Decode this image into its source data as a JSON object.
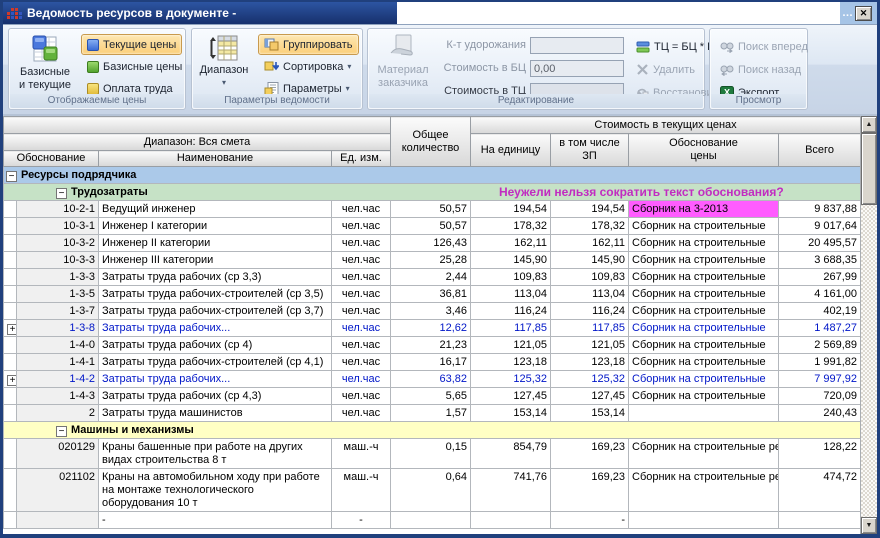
{
  "window": {
    "title": "Ведомость ресурсов в документе -",
    "overflow": "…",
    "close": "✕"
  },
  "icons": {
    "collapse": "−",
    "expand": "+",
    "chevron": "▾",
    "up": "▲",
    "down": "▼",
    "sort_arrow": "↓"
  },
  "colors": {
    "highlight_cell": "#ff5cff",
    "annotation": "#c12cc1",
    "group_blue": "#abc9e9",
    "group_green": "#c6e2c6",
    "group_yellow": "#ffffc4",
    "active_button": "#fbcf79",
    "titlebar": "#16306c"
  },
  "ribbon": {
    "display": {
      "label": "Отображаемые цены",
      "big": {
        "line1": "Базисные",
        "line2": "и текущие"
      },
      "buttons": [
        {
          "label": "Текущие цены"
        },
        {
          "label": "Базисные цены"
        },
        {
          "label": "Оплата труда"
        }
      ]
    },
    "params": {
      "label": "Параметры ведомости",
      "big": {
        "line1": "Диапазон"
      },
      "buttons": [
        {
          "label": "Группировать"
        },
        {
          "label": "Сортировка"
        },
        {
          "label": "Параметры"
        }
      ]
    },
    "edit": {
      "label": "Редактирование",
      "big": {
        "line1": "Материал",
        "line2": "заказчика"
      },
      "fields": [
        {
          "label": "К-т удорожания",
          "value": ""
        },
        {
          "label": "Стоимость в БЦ",
          "value": "0,00"
        },
        {
          "label": "Стоимость в ТЦ",
          "value": ""
        }
      ],
      "buttons": [
        {
          "label": "ТЦ = БЦ * К"
        },
        {
          "label": "Удалить"
        },
        {
          "label": "Восстановить"
        }
      ]
    },
    "view": {
      "label": "Просмотр",
      "buttons": [
        {
          "label": "Поиск вперед"
        },
        {
          "label": "Поиск назад"
        },
        {
          "label": "Экспорт"
        }
      ]
    }
  },
  "table": {
    "range": "Диапазон: Вся смета",
    "header": {
      "code": "Обоснование",
      "name": "Наименование",
      "unit": "Ед. изм.",
      "qty1": "Общее",
      "qty2": "количество",
      "group": "Стоимость в текущих ценах",
      "per": "На единицу",
      "sal1": "в том числе",
      "sal2": "ЗП",
      "basis1": "Обоснование",
      "basis2": "цены",
      "total": "Всего"
    },
    "rows": [
      {
        "kind": "g1",
        "label": "Ресурсы подрядчика"
      },
      {
        "kind": "g2",
        "label": "Трудозатраты",
        "annotation": "Неужели нельзя сократить текст обоснования?"
      },
      {
        "kind": "data",
        "code": "10-2-1",
        "name": "Ведущий инженер",
        "unit": "чел.час",
        "qty": "50,57",
        "per": "194,54",
        "sal": "194,54",
        "basis": "Сборник на 3-2013",
        "total": "9 837,88",
        "hl": true
      },
      {
        "kind": "data",
        "code": "10-3-1",
        "name": "Инженер I категории",
        "unit": "чел.час",
        "qty": "50,57",
        "per": "178,32",
        "sal": "178,32",
        "basis": "Сборник на строительные",
        "total": "9 017,64"
      },
      {
        "kind": "data",
        "code": "10-3-2",
        "name": "Инженер II категории",
        "unit": "чел.час",
        "qty": "126,43",
        "per": "162,11",
        "sal": "162,11",
        "basis": "Сборник на строительные",
        "total": "20 495,57"
      },
      {
        "kind": "data",
        "code": "10-3-3",
        "name": "Инженер III категории",
        "unit": "чел.час",
        "qty": "25,28",
        "per": "145,90",
        "sal": "145,90",
        "basis": "Сборник на строительные",
        "total": "3 688,35"
      },
      {
        "kind": "data",
        "code": "1-3-3",
        "name": "Затраты труда рабочих (ср 3,3)",
        "unit": "чел.час",
        "qty": "2,44",
        "per": "109,83",
        "sal": "109,83",
        "basis": "Сборник на строительные",
        "total": "267,99"
      },
      {
        "kind": "data",
        "code": "1-3-5",
        "name": "Затраты труда рабочих-строителей (ср 3,5)",
        "unit": "чел.час",
        "qty": "36,81",
        "per": "113,04",
        "sal": "113,04",
        "basis": "Сборник на строительные",
        "total": "4 161,00"
      },
      {
        "kind": "data",
        "code": "1-3-7",
        "name": "Затраты труда рабочих-строителей (ср 3,7)",
        "unit": "чел.час",
        "qty": "3,46",
        "per": "116,24",
        "sal": "116,24",
        "basis": "Сборник на строительные",
        "total": "402,19"
      },
      {
        "kind": "data",
        "code": "1-3-8",
        "name": "Затраты труда рабочих...",
        "unit": "чел.час",
        "qty": "12,62",
        "per": "117,85",
        "sal": "117,85",
        "basis": "Сборник на строительные",
        "total": "1 487,27",
        "blue": true,
        "expand": true
      },
      {
        "kind": "data",
        "code": "1-4-0",
        "name": "Затраты труда рабочих (ср 4)",
        "unit": "чел.час",
        "qty": "21,23",
        "per": "121,05",
        "sal": "121,05",
        "basis": "Сборник на строительные",
        "total": "2 569,89"
      },
      {
        "kind": "data",
        "code": "1-4-1",
        "name": "Затраты труда рабочих-строителей (ср 4,1)",
        "unit": "чел.час",
        "qty": "16,17",
        "per": "123,18",
        "sal": "123,18",
        "basis": "Сборник на строительные",
        "total": "1 991,82"
      },
      {
        "kind": "data",
        "code": "1-4-2",
        "name": "Затраты труда рабочих...",
        "unit": "чел.час",
        "qty": "63,82",
        "per": "125,32",
        "sal": "125,32",
        "basis": "Сборник на строительные",
        "total": "7 997,92",
        "blue": true,
        "expand": true
      },
      {
        "kind": "data",
        "code": "1-4-3",
        "name": "Затраты труда рабочих (ср 4,3)",
        "unit": "чел.час",
        "qty": "5,65",
        "per": "127,45",
        "sal": "127,45",
        "basis": "Сборник на строительные",
        "total": "720,09"
      },
      {
        "kind": "data",
        "code": "2",
        "name": "Затраты труда машинистов",
        "unit": "чел.час",
        "qty": "1,57",
        "per": "153,14",
        "sal": "153,14",
        "basis": "",
        "total": "240,43"
      },
      {
        "kind": "g3",
        "label": "Машины и механизмы"
      },
      {
        "kind": "data",
        "code": "020129",
        "name": "Краны башенные при работе на других видах строительства 8 т",
        "unit": "маш.-ч",
        "qty": "0,15",
        "per": "854,79",
        "sal": "169,23",
        "basis": "Сборник на строительные ресурсы 3-2013",
        "total": "128,22",
        "wrap": true
      },
      {
        "kind": "data",
        "code": "021102",
        "name": "Краны на автомобильном ходу при работе на монтаже технологического оборудования 10 т",
        "unit": "маш.-ч",
        "qty": "0,64",
        "per": "741,76",
        "sal": "169,23",
        "basis": "Сборник на строительные ресурсы 3-2013",
        "total": "474,72",
        "wrap": true
      },
      {
        "kind": "data",
        "code": "",
        "name": "-",
        "unit": "-",
        "qty": "",
        "per": "",
        "sal": "-",
        "basis": "",
        "total": ""
      }
    ]
  }
}
